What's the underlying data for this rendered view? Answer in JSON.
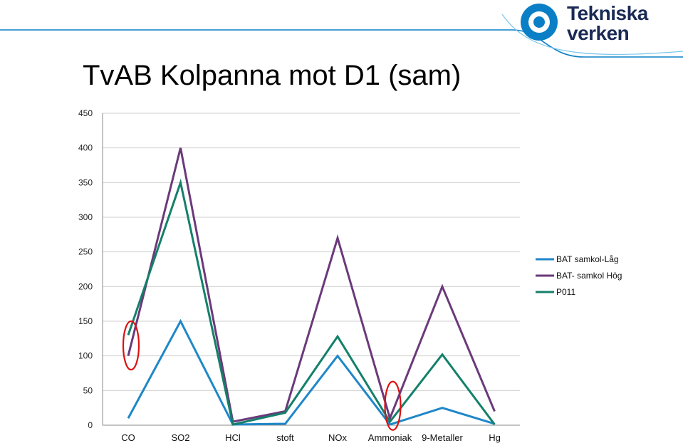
{
  "slide": {
    "title": "TvAB Kolpanna mot D1 (sam)"
  },
  "logo": {
    "line1": "Tekniska",
    "line2": "verken",
    "brand_color": "#0a7fc6",
    "text_color": "#1a2a55"
  },
  "chart_data": {
    "type": "line",
    "categories": [
      "CO",
      "SO2",
      "HCl",
      "stoft",
      "NOx",
      "Ammoniak",
      "9-Metaller",
      "Hg"
    ],
    "ylim": [
      0,
      450
    ],
    "yticks": [
      0,
      50,
      100,
      150,
      200,
      250,
      300,
      350,
      400,
      450
    ],
    "grid": true,
    "legend_position": "right",
    "series": [
      {
        "name": "BAT samkol-Låg",
        "color": "#1f87c8",
        "values": [
          10,
          150,
          1,
          2,
          100,
          1,
          25,
          2
        ]
      },
      {
        "name": "BAT- samkol Hög",
        "color": "#6b3a7a",
        "values": [
          100,
          400,
          5,
          20,
          270,
          10,
          200,
          20
        ]
      },
      {
        "name": "P011",
        "color": "#14806a",
        "values": [
          130,
          350,
          1,
          18,
          128,
          5,
          102,
          1
        ]
      }
    ],
    "annotations": [
      {
        "type": "ellipse",
        "category": "CO",
        "value": 115,
        "color": "#dd1111"
      },
      {
        "type": "ellipse",
        "category": "Ammoniak",
        "value": 28,
        "color": "#dd1111"
      }
    ]
  }
}
